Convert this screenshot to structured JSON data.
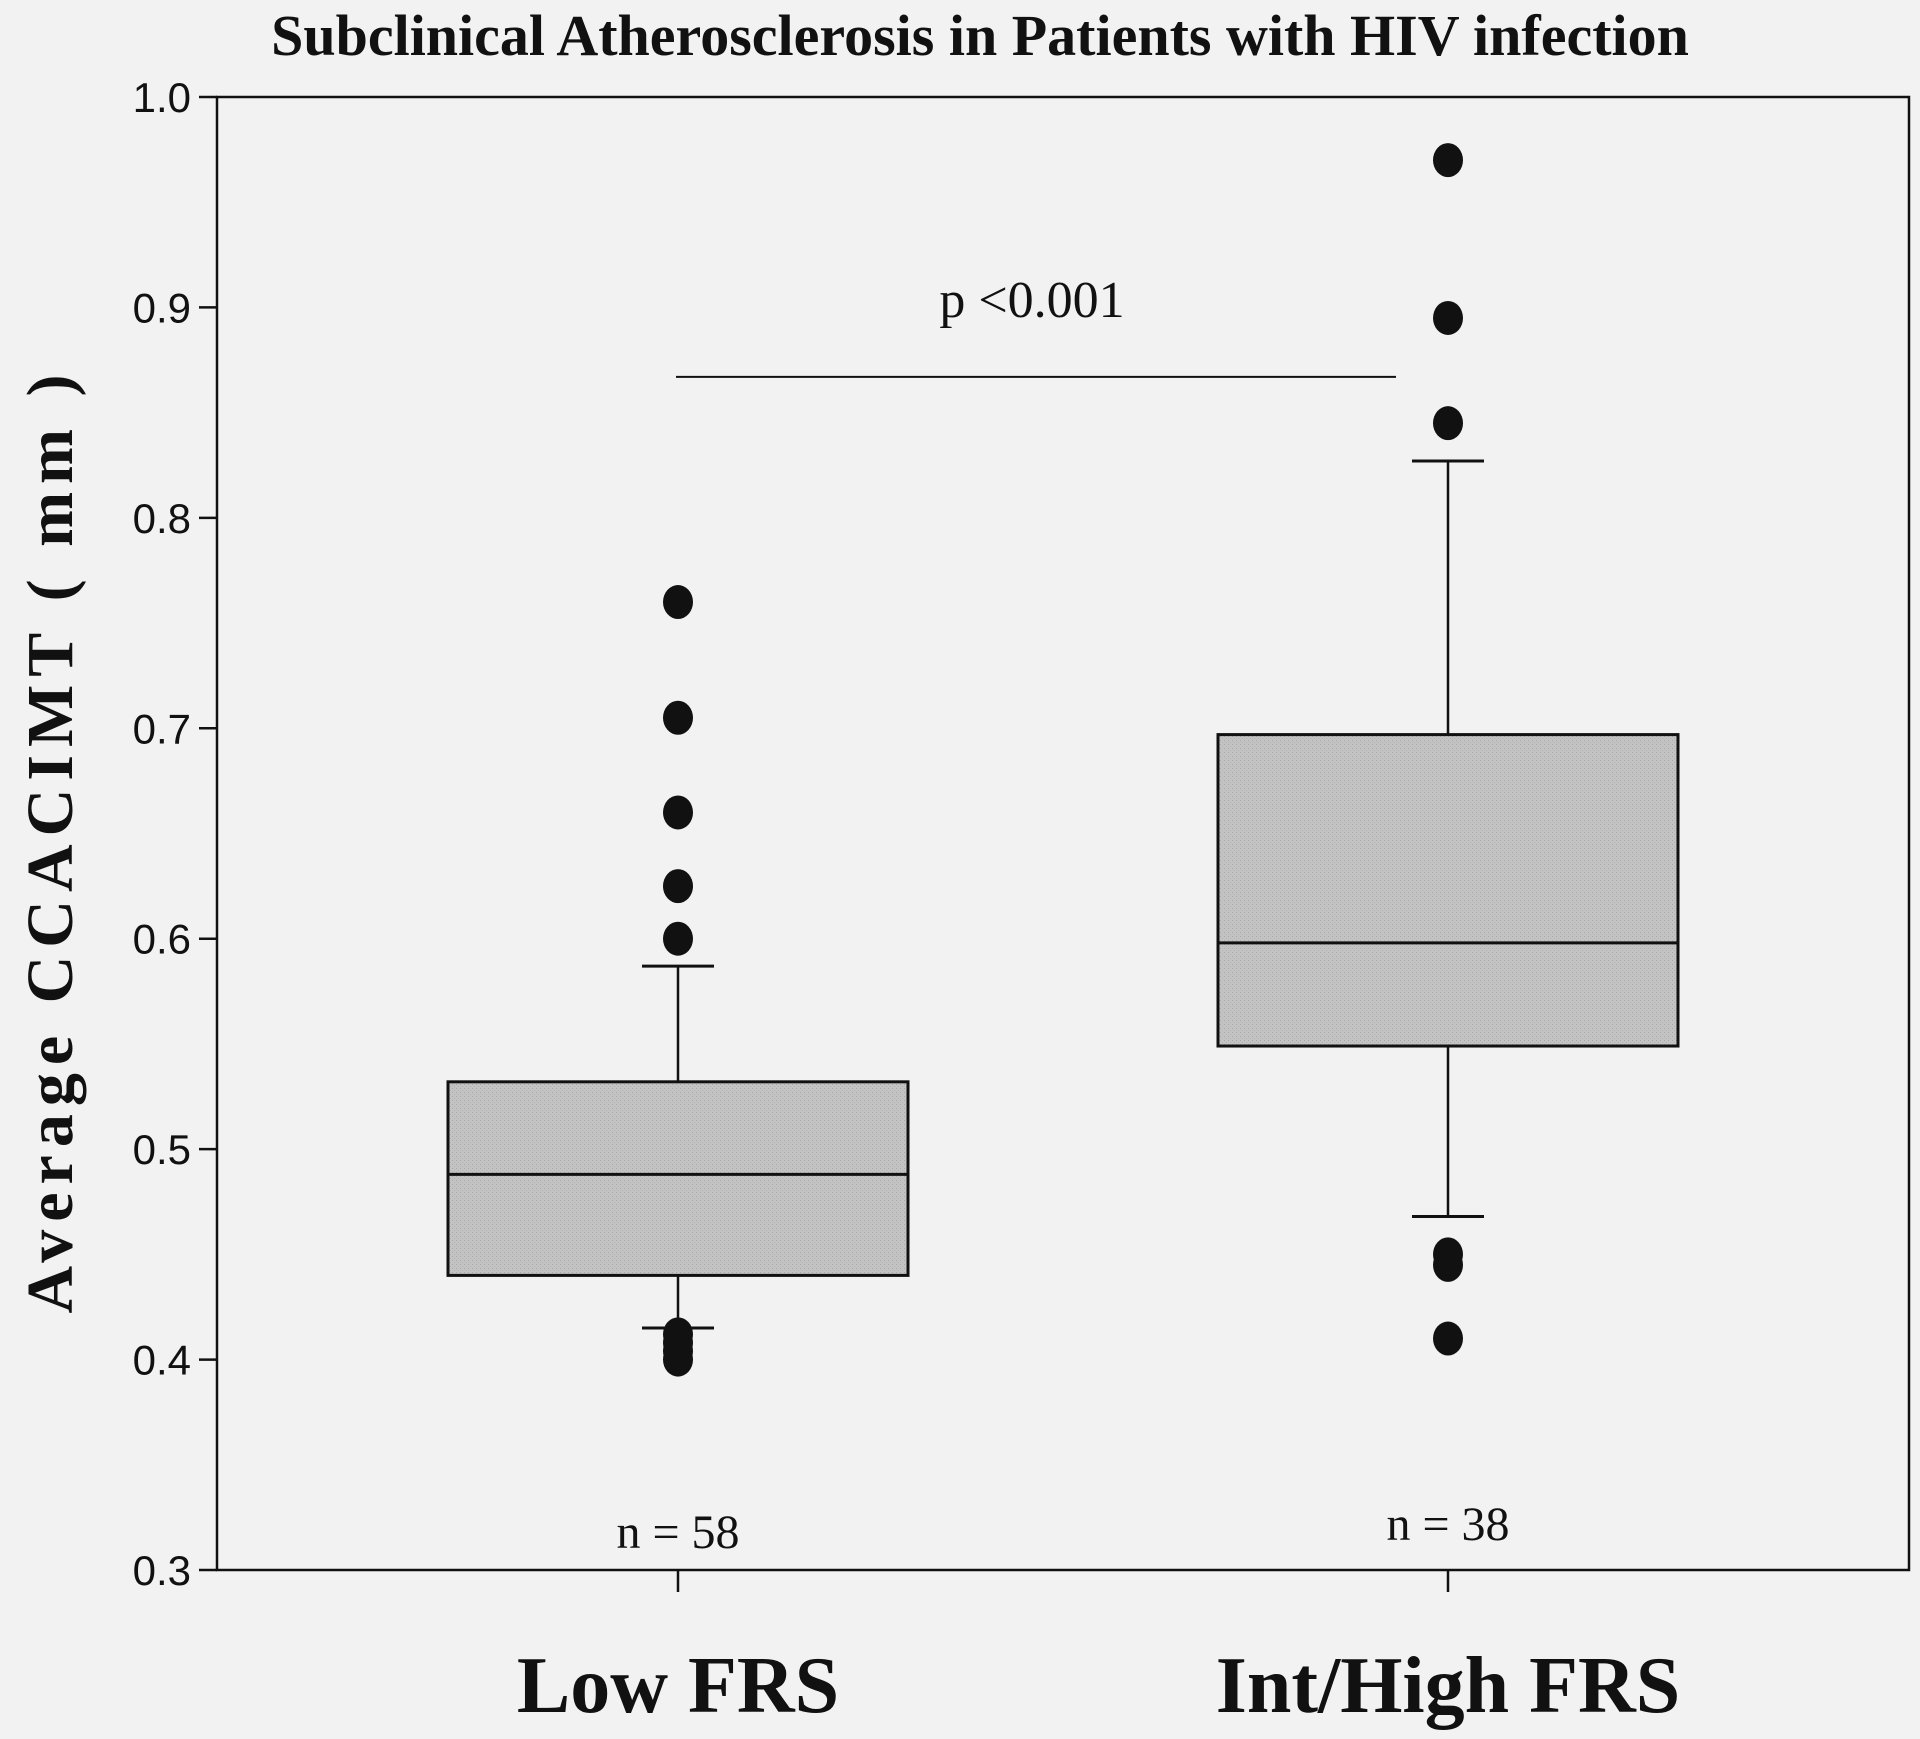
{
  "chart_data": {
    "type": "box",
    "title": "Subclinical Atherosclerosis in Patients with HIV infection",
    "xlabel": "",
    "ylabel": "Average CCACIMT ( mm )",
    "ylim": [
      0.3,
      1.0
    ],
    "yticks": [
      "0.3",
      "0.4",
      "0.5",
      "0.6",
      "0.7",
      "0.8",
      "0.9",
      "1.0"
    ],
    "categories": [
      "Low FRS",
      "Int/High FRS"
    ],
    "series": [
      {
        "name": "Low FRS",
        "whisker_low": 0.415,
        "q1": 0.44,
        "median": 0.488,
        "q3": 0.532,
        "whisker_high": 0.587,
        "outliers": [
          0.4,
          0.404,
          0.408,
          0.412,
          0.6,
          0.625,
          0.66,
          0.705,
          0.76
        ],
        "n_label": "n = 58"
      },
      {
        "name": "Int/High FRS",
        "whisker_low": 0.468,
        "q1": 0.549,
        "median": 0.598,
        "q3": 0.697,
        "whisker_high": 0.827,
        "outliers": [
          0.41,
          0.445,
          0.45,
          0.845,
          0.895,
          0.97
        ],
        "n_label": "n = 38"
      }
    ],
    "annotation": {
      "text": "p <0.001",
      "y": 0.867
    },
    "colors": {
      "box_fill": "#c0c0c0",
      "line": "#111111",
      "outlier": "#111111",
      "background": "#f2f2f2"
    }
  }
}
